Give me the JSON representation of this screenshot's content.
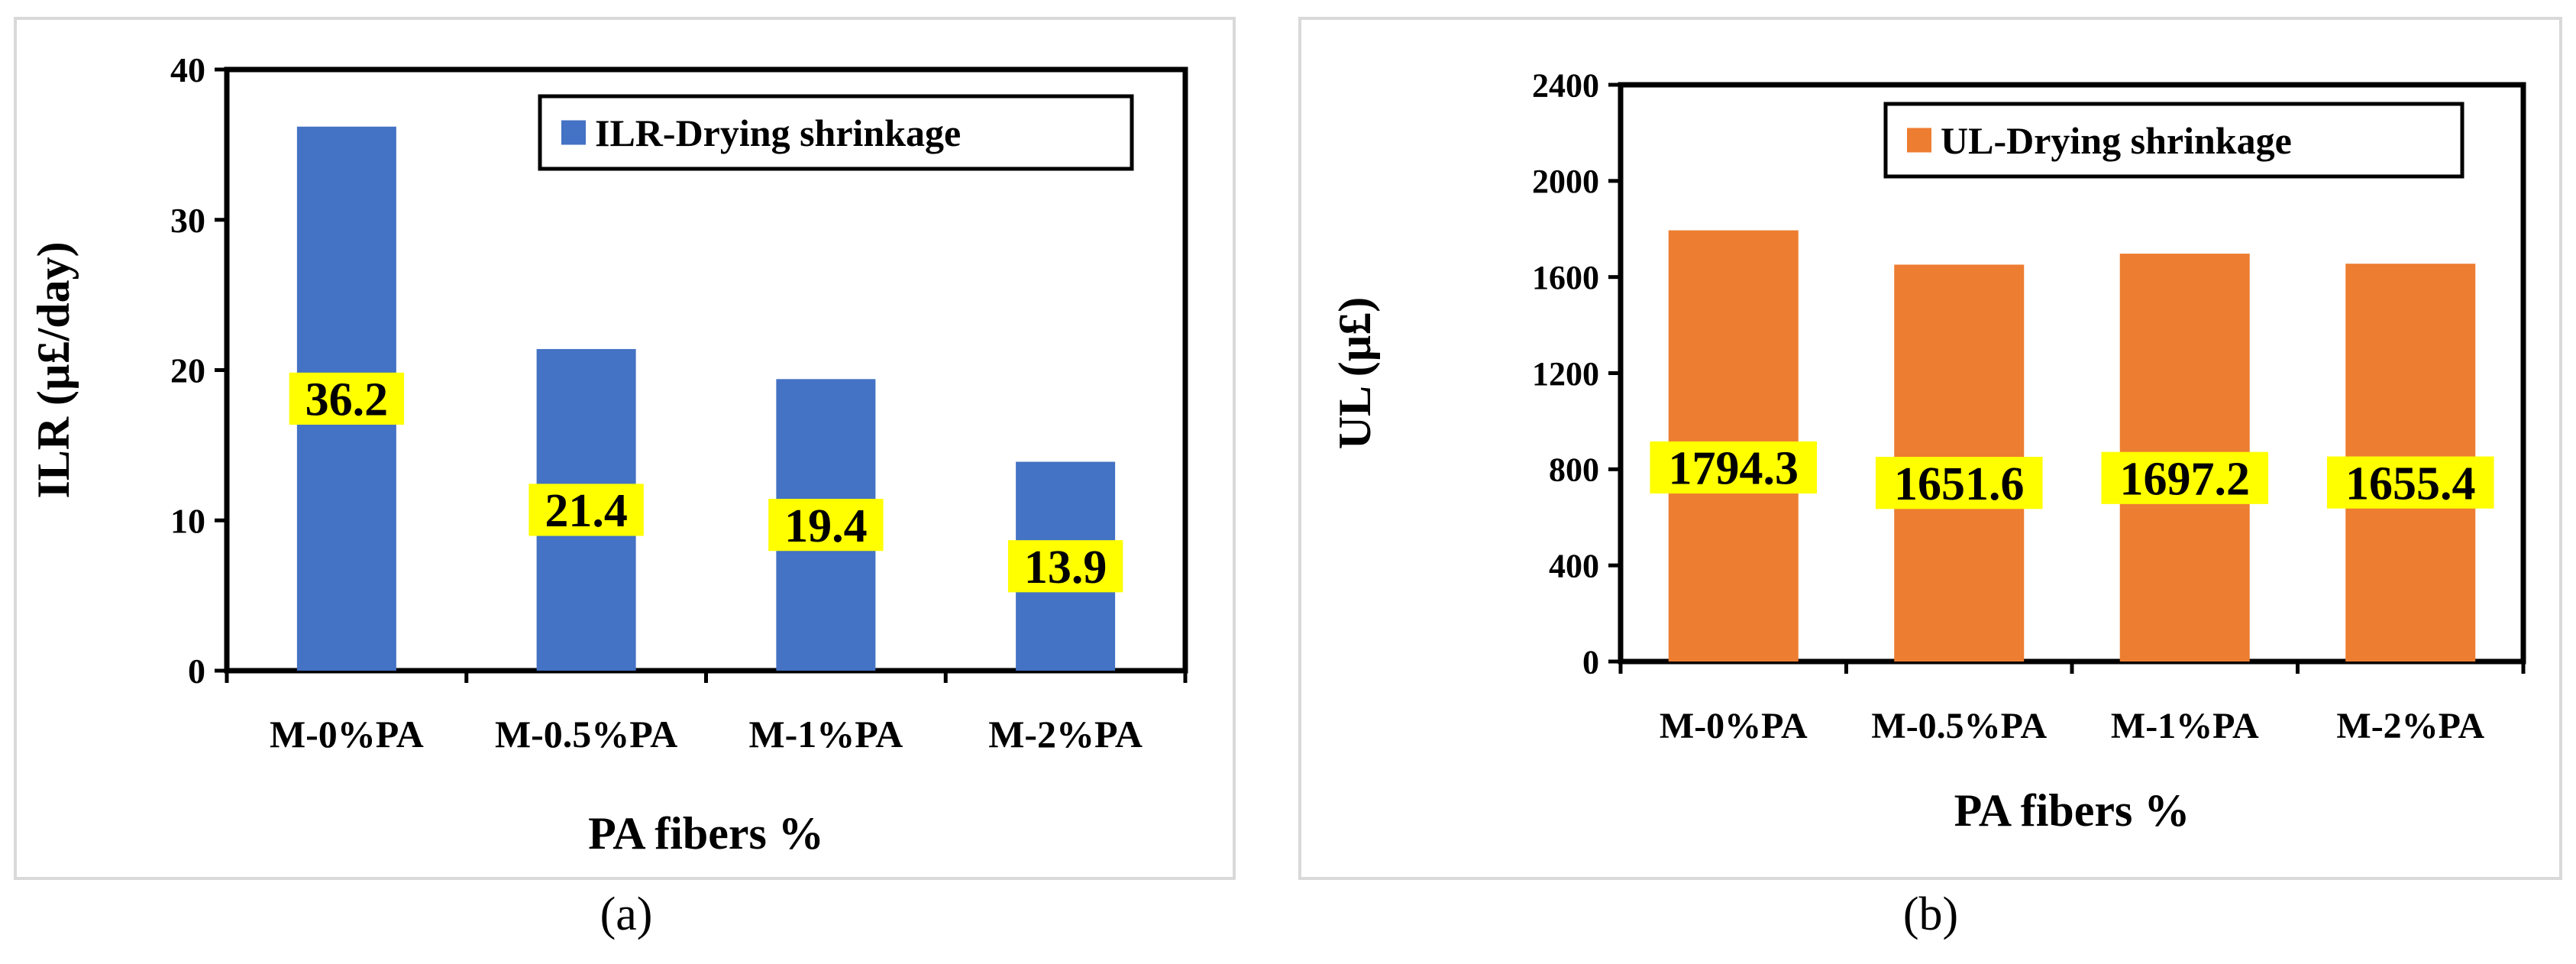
{
  "chart_data": [
    {
      "type": "bar",
      "panel": "(a)",
      "categories": [
        "M-0%PA",
        "M-0.5%PA",
        "M-1%PA",
        "M-2%PA"
      ],
      "series": [
        {
          "name": "ILR-Drying shrinkage",
          "values": [
            36.2,
            21.4,
            19.4,
            13.9
          ]
        }
      ],
      "data_labels": [
        "36.2",
        "21.4",
        "19.4",
        "13.9"
      ],
      "xlabel": "PA fibers %",
      "ylabel": "ILR (µ£/day)",
      "ylim": [
        0,
        40
      ],
      "yticks": [
        "0",
        "10",
        "20",
        "30",
        "40"
      ],
      "bar_color": "#4472C4",
      "label_bg": "#FFFF00",
      "legend_position": "top-right",
      "grid": false
    },
    {
      "type": "bar",
      "panel": "(b)",
      "categories": [
        "M-0%PA",
        "M-0.5%PA",
        "M-1%PA",
        "M-2%PA"
      ],
      "series": [
        {
          "name": "UL-Drying shrinkage",
          "values": [
            1794.3,
            1651.6,
            1697.2,
            1655.4
          ]
        }
      ],
      "data_labels": [
        "1794.3",
        "1651.6",
        "1697.2",
        "1655.4"
      ],
      "xlabel": "PA fibers %",
      "ylabel": "UL (µ£)",
      "ylim": [
        0,
        2400
      ],
      "yticks": [
        "0",
        "400",
        "800",
        "1200",
        "1600",
        "2000",
        "2400"
      ],
      "bar_color": "#ED7D31",
      "label_bg": "#FFFF00",
      "legend_position": "top-right",
      "grid": false
    }
  ]
}
